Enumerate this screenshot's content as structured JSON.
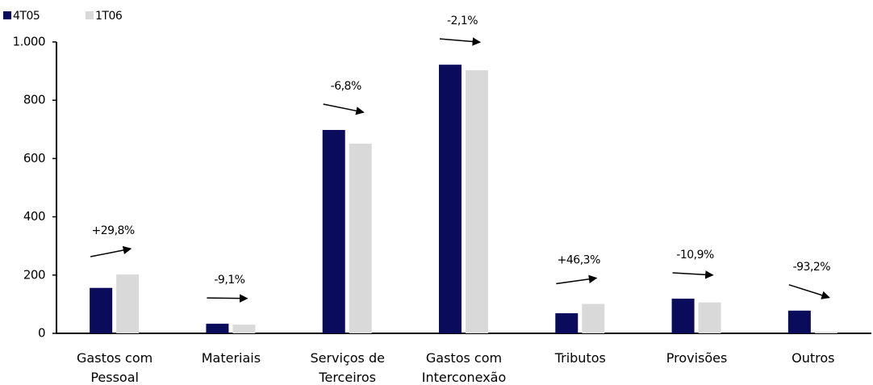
{
  "chart_data": {
    "type": "bar",
    "categories": [
      "Gastos com Pessoal",
      "Materiais",
      "Serviços de Terceiros",
      "Gastos com Interconexão",
      "Tributos",
      "Provisões",
      "Outros"
    ],
    "series": [
      {
        "name": "4T05",
        "color": "#0b0b5c",
        "values": [
          156,
          33,
          698,
          922,
          69,
          119,
          78
        ]
      },
      {
        "name": "1T06",
        "color": "#d9d9d9",
        "values": [
          202,
          30,
          651,
          903,
          101,
          106,
          5
        ]
      }
    ],
    "annotations": [
      "+29,8%",
      "-9,1%",
      "-6,8%",
      "-2,1%",
      "+46,3%",
      "-10,9%",
      "-93,2%"
    ],
    "ylim": [
      0,
      1000
    ],
    "yticks": [
      0,
      200,
      400,
      600,
      800,
      {
        "value": 1000,
        "label": "1.000"
      }
    ],
    "legend": "top-left"
  }
}
